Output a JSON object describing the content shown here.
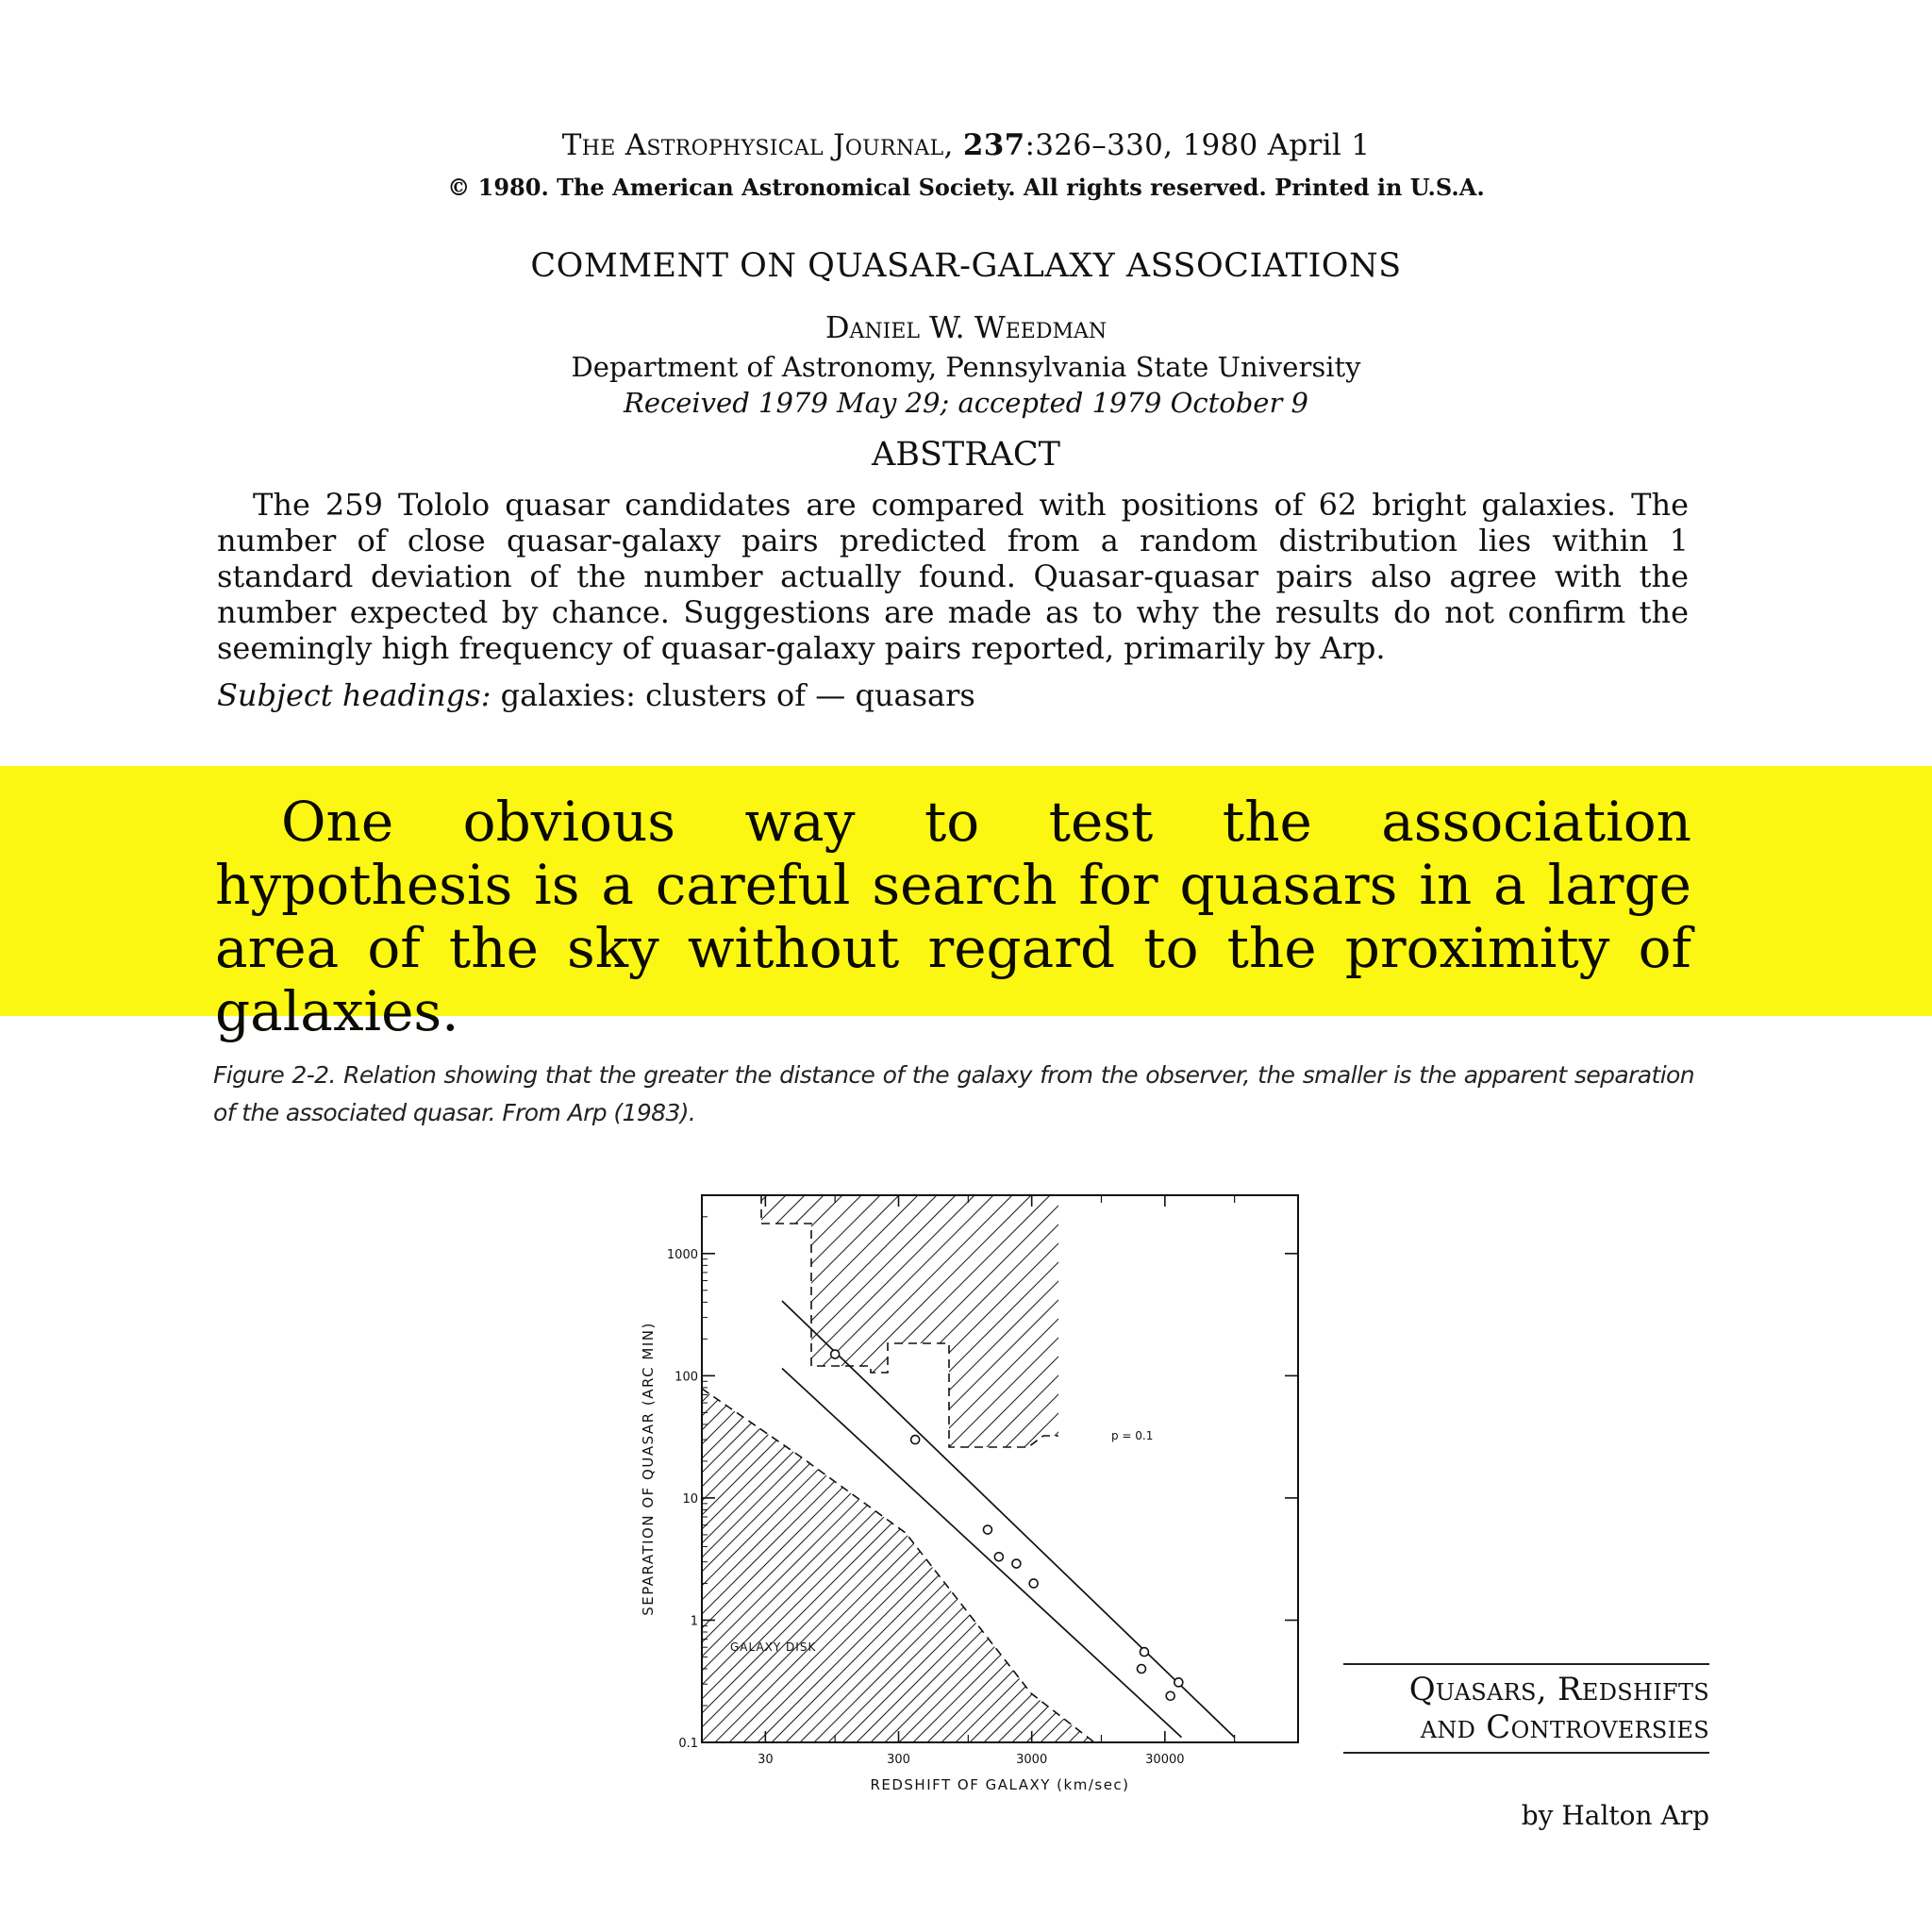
{
  "header": {
    "journal_name": "The Astrophysical Journal,",
    "volume": "237",
    "pages_date": ":326–330, 1980 April 1",
    "copyright": "© 1980. The American Astronomical Society. All rights reserved. Printed in U.S.A."
  },
  "paper": {
    "title": "COMMENT ON QUASAR-GALAXY ASSOCIATIONS",
    "author": "Daniel W. Weedman",
    "affiliation": "Department of Astronomy, Pennsylvania State University",
    "received": "Received 1979 May 29; accepted 1979 October 9",
    "abstract_heading": "ABSTRACT",
    "abstract_text": "The 259 Tololo quasar candidates are compared with positions of 62 bright galaxies. The number of close quasar-galaxy pairs predicted from a random distribution lies within 1 standard deviation of the number actually found. Quasar-quasar pairs also agree with the number expected by chance. Suggestions are made as to why the results do not confirm the seemingly high frequency of quasar-galaxy pairs reported, primarily by Arp.",
    "subject_label": "Subject headings:",
    "subject_value": "galaxies: clusters of — quasars"
  },
  "highlight": {
    "quote": "One obvious way to test the association hypothesis is a careful search for quasars in a large area of the sky without regard to the proximity of galaxies.",
    "color": "#fbf713"
  },
  "figure": {
    "caption": "Figure 2-2. Relation showing that the greater the distance of the galaxy from the observer, the smaller is the apparent separation of the associated quasar. From Arp (1983)."
  },
  "chart_data": {
    "type": "scatter",
    "title": "",
    "xlabel": "REDSHIFT OF GALAXY (km/sec)",
    "ylabel": "SEPARATION OF QUASAR (ARC MIN)",
    "x_scale": "log",
    "y_scale": "log",
    "xlim": [
      10,
      300000
    ],
    "ylim": [
      0.1,
      3000
    ],
    "x_ticks": [
      30,
      300,
      3000,
      30000
    ],
    "x_tick_labels": [
      "30",
      "300",
      "3000",
      "30000"
    ],
    "y_ticks": [
      0.1,
      1,
      10,
      100,
      1000
    ],
    "y_tick_labels": [
      "0.1",
      "1",
      "10",
      "100",
      "1000"
    ],
    "points": [
      {
        "x": 100,
        "y": 150
      },
      {
        "x": 400,
        "y": 30
      },
      {
        "x": 1400,
        "y": 5.5
      },
      {
        "x": 1700,
        "y": 3.3
      },
      {
        "x": 2300,
        "y": 2.9
      },
      {
        "x": 3100,
        "y": 2.0
      },
      {
        "x": 21000,
        "y": 0.55
      },
      {
        "x": 20000,
        "y": 0.4
      },
      {
        "x": 38000,
        "y": 0.31
      },
      {
        "x": 33000,
        "y": 0.24
      }
    ],
    "trend_lines": [
      {
        "from": {
          "x": 40,
          "y": 410
        },
        "to": {
          "x": 100000,
          "y": 0.11
        }
      },
      {
        "from": {
          "x": 40,
          "y": 115
        },
        "to": {
          "x": 40000,
          "y": 0.11
        }
      }
    ],
    "hatched_regions": [
      {
        "label": "GALAXY DISK"
      },
      {
        "label": "p = 0.1"
      }
    ]
  },
  "book": {
    "title_line1": "Quasars, Redshifts",
    "title_line2": "and Controversies",
    "author": "by Halton Arp"
  }
}
